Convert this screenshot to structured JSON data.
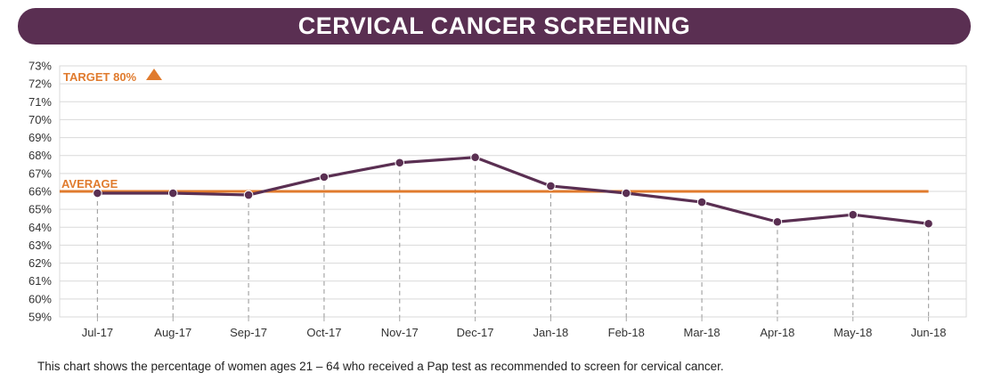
{
  "header": {
    "title": "CERVICAL CANCER SCREENING"
  },
  "caption": "This chart shows the percentage of women ages 21 – 64 who received a Pap test as recommended to screen for cervical cancer.",
  "colors": {
    "banner": "#5a2f52",
    "line": "#5a2f52",
    "average": "#e07b2e",
    "target_text": "#e07b2e",
    "grid": "#d9d9d9",
    "drop_line": "#a6a6a6"
  },
  "chart_data": {
    "type": "line",
    "title": "CERVICAL CANCER SCREENING",
    "categories": [
      "Jul-17",
      "Aug-17",
      "Sep-17",
      "Oct-17",
      "Nov-17",
      "Dec-17",
      "Jan-18",
      "Feb-18",
      "Mar-18",
      "Apr-18",
      "May-18",
      "Jun-18"
    ],
    "series": [
      {
        "values": [
          65.9,
          65.9,
          65.8,
          66.8,
          67.6,
          67.9,
          66.3,
          65.9,
          65.4,
          64.3,
          64.7,
          64.2
        ]
      }
    ],
    "average": {
      "label": "AVERAGE",
      "value": 66.0
    },
    "target": {
      "label": "TARGET 80%"
    },
    "ylim": [
      59,
      73
    ],
    "y_tick_labels": [
      "59%",
      "60%",
      "61%",
      "62%",
      "63%",
      "64%",
      "65%",
      "66%",
      "67%",
      "68%",
      "69%",
      "70%",
      "71%",
      "72%",
      "73%"
    ],
    "grid": true,
    "xlabel": "",
    "ylabel": ""
  }
}
